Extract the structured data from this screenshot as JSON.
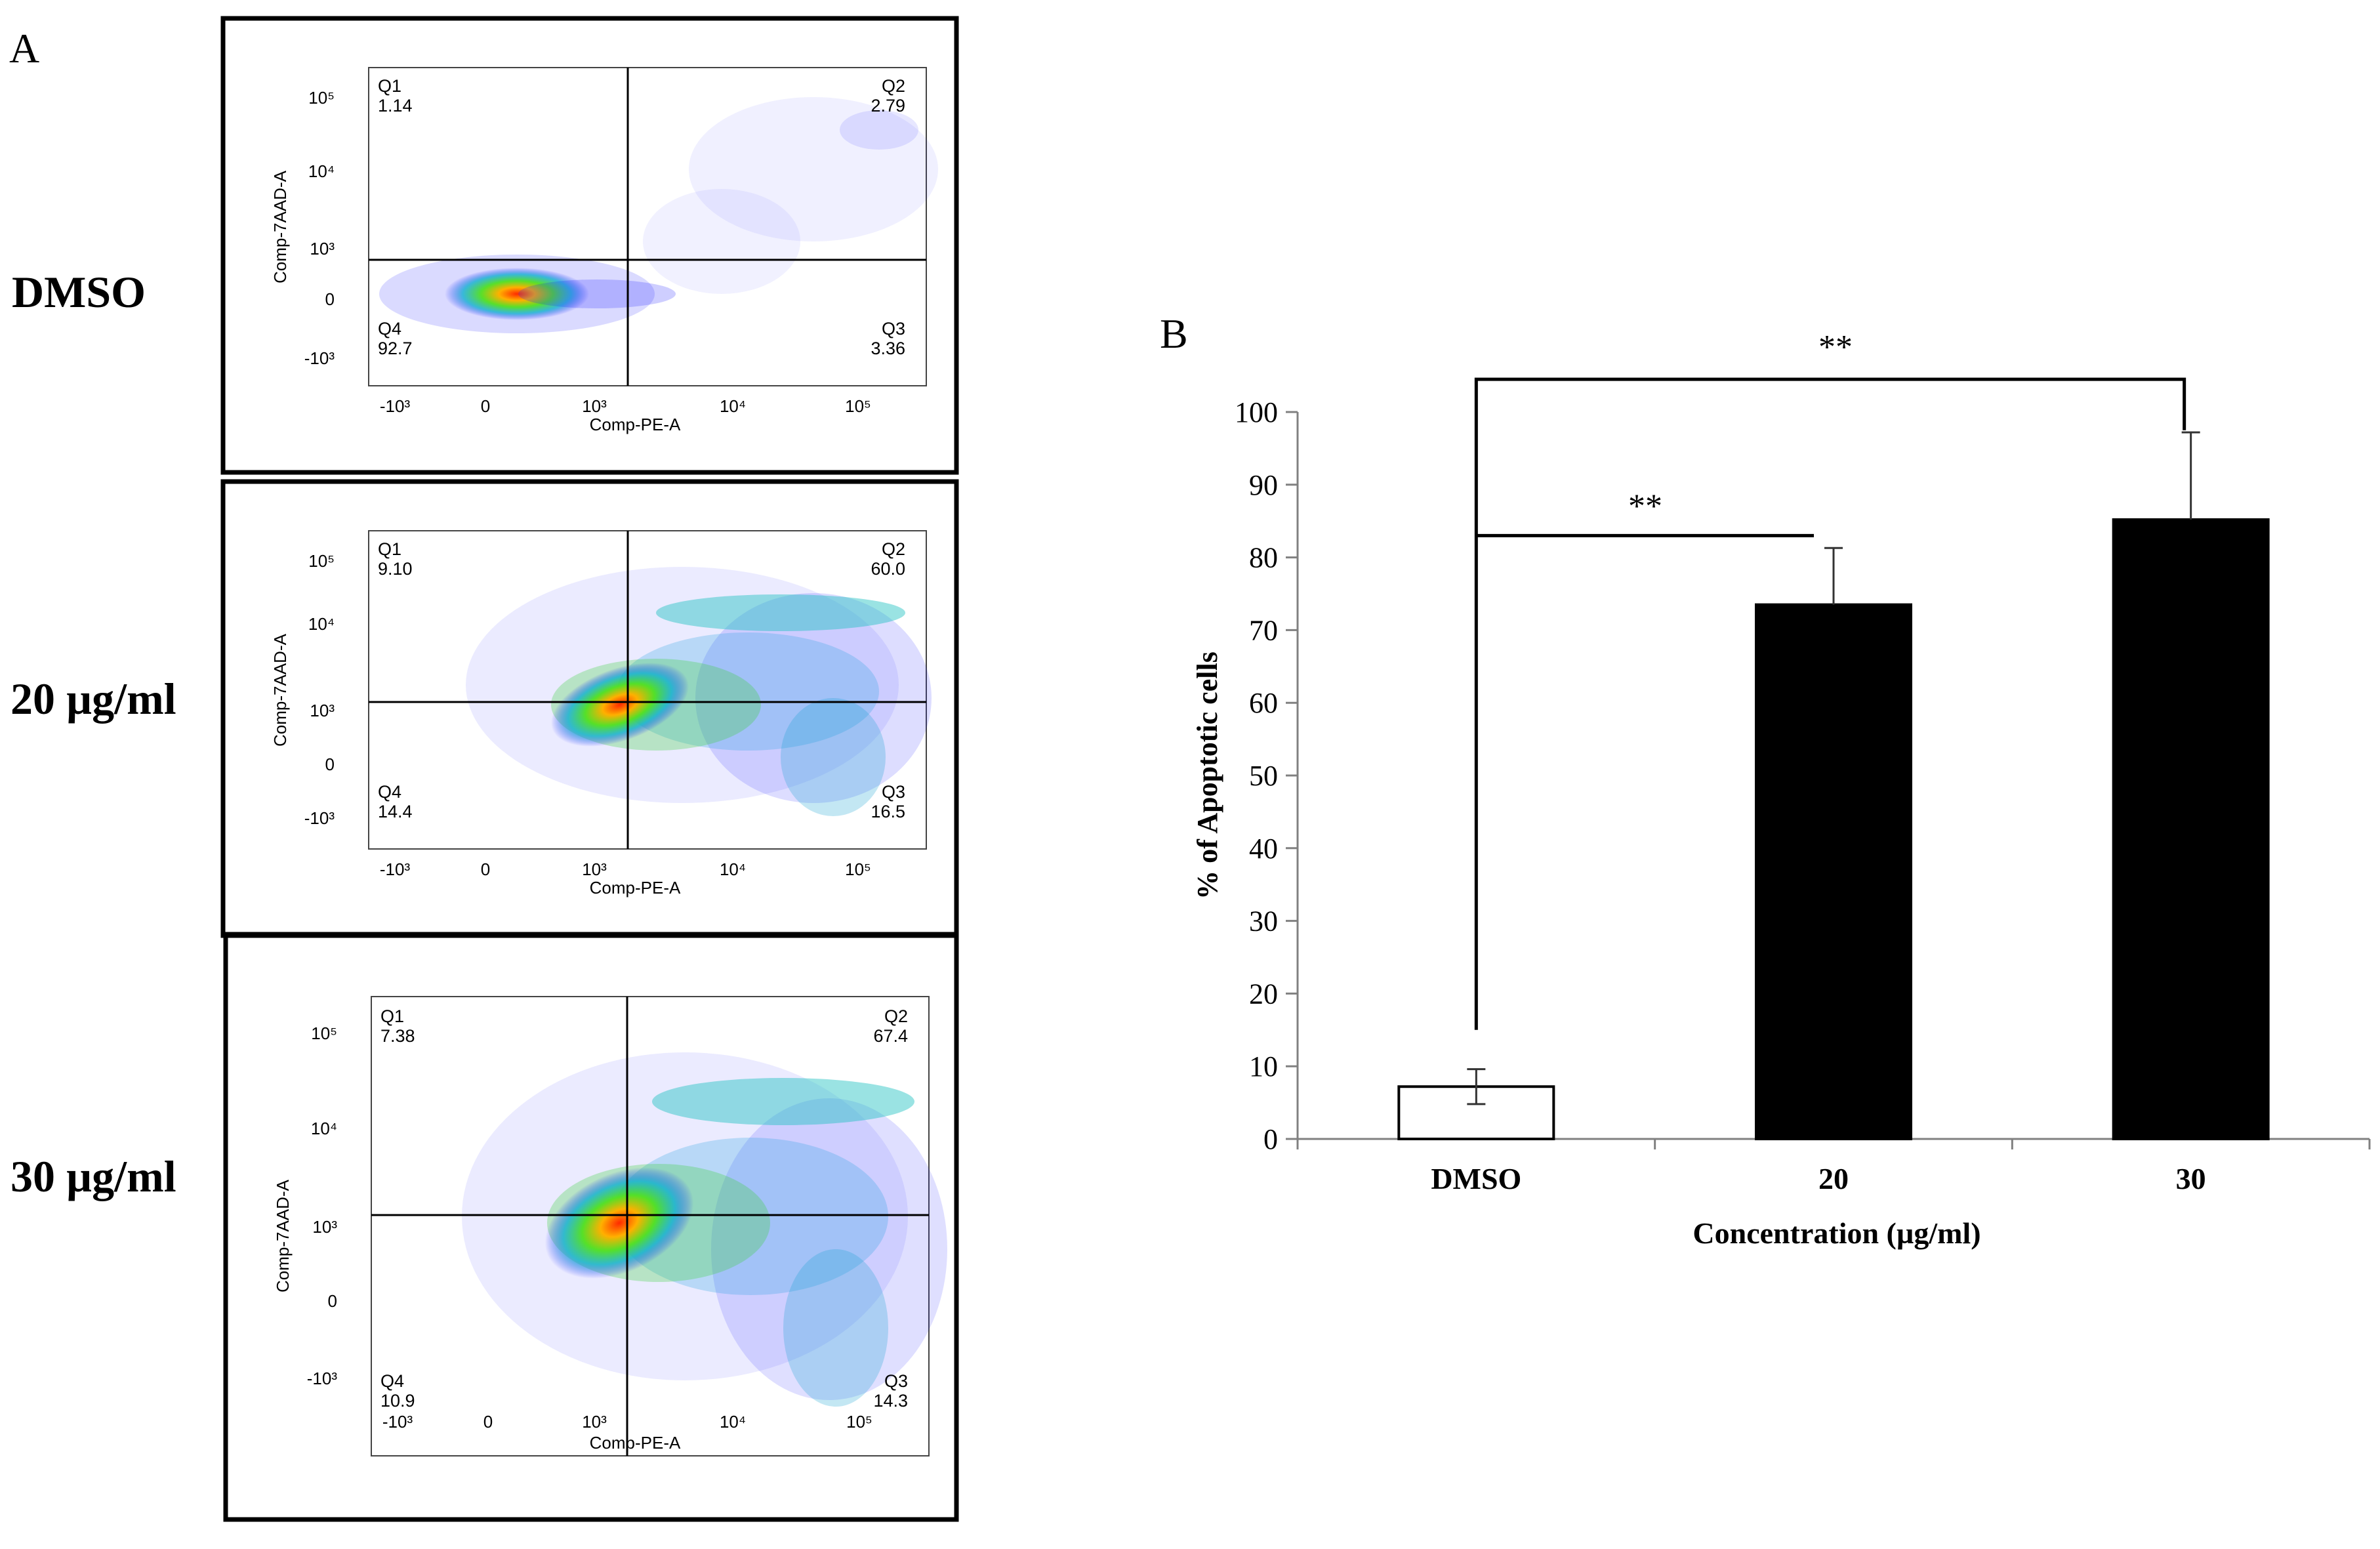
{
  "panel_a": {
    "label": "A",
    "plots": [
      {
        "condition": "DMSO",
        "x_axis_label": "Comp-PE-A",
        "y_axis_label": "Comp-7AAD-A",
        "x_ticks": [
          "-10³",
          "0",
          "10³",
          "10⁴",
          "10⁵"
        ],
        "y_ticks": [
          "10⁵",
          "10⁴",
          "10³",
          "0",
          "-10³"
        ],
        "quadrants": [
          {
            "name": "Q1",
            "value": "1.14"
          },
          {
            "name": "Q2",
            "value": "2.79"
          },
          {
            "name": "Q3",
            "value": "3.36"
          },
          {
            "name": "Q4",
            "value": "92.7"
          }
        ]
      },
      {
        "condition": "20 µg/ml",
        "x_axis_label": "Comp-PE-A",
        "y_axis_label": "Comp-7AAD-A",
        "x_ticks": [
          "-10³",
          "0",
          "10³",
          "10⁴",
          "10⁵"
        ],
        "y_ticks": [
          "10⁵",
          "10⁴",
          "10³",
          "0",
          "-10³"
        ],
        "quadrants": [
          {
            "name": "Q1",
            "value": "9.10"
          },
          {
            "name": "Q2",
            "value": "60.0"
          },
          {
            "name": "Q3",
            "value": "16.5"
          },
          {
            "name": "Q4",
            "value": "14.4"
          }
        ]
      },
      {
        "condition": "30 µg/ml",
        "x_axis_label": "Comp-PE-A",
        "y_axis_label": "Comp-7AAD-A",
        "x_ticks": [
          "-10³",
          "0",
          "10³",
          "10⁴",
          "10⁵"
        ],
        "y_ticks": [
          "10⁵",
          "10⁴",
          "10³",
          "0",
          "-10³"
        ],
        "quadrants": [
          {
            "name": "Q1",
            "value": "7.38"
          },
          {
            "name": "Q2",
            "value": "67.4"
          },
          {
            "name": "Q3",
            "value": "14.3"
          },
          {
            "name": "Q4",
            "value": "10.9"
          }
        ]
      }
    ]
  },
  "chart_data": {
    "type": "bar",
    "panel_label": "B",
    "categories": [
      "DMSO",
      "20",
      "30"
    ],
    "values": [
      7.2,
      73.5,
      85.2
    ],
    "errors": [
      2.4,
      7.8,
      12.0
    ],
    "bar_fills": [
      "#ffffff",
      "#000000",
      "#000000"
    ],
    "xlabel": "Concentration (µg/ml)",
    "ylabel": "% of Apoptotic cells",
    "ylim": [
      0,
      100
    ],
    "yticks": [
      0,
      10,
      20,
      30,
      40,
      50,
      60,
      70,
      80,
      90,
      100
    ],
    "significance": [
      {
        "from": "DMSO",
        "to": "20",
        "label": "**"
      },
      {
        "from": "DMSO",
        "to": "30",
        "label": "**"
      }
    ]
  }
}
